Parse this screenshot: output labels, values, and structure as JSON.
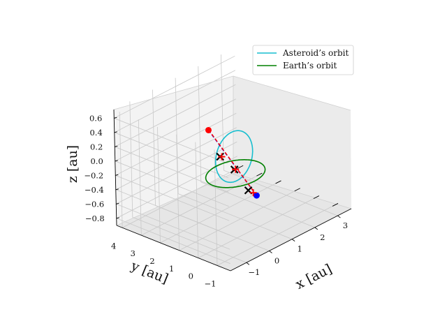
{
  "chart_data": {
    "type": "line",
    "projection": "3d",
    "xlabel": "x [au]",
    "ylabel": "y [au]",
    "zlabel": "z [au]",
    "xlim": [
      -1.7,
      3.6
    ],
    "ylim": [
      -1.7,
      4.3
    ],
    "zlim": [
      -0.9,
      0.72
    ],
    "xticks": [
      "−1",
      "0",
      "1",
      "2",
      "3"
    ],
    "xtick_values": [
      -1,
      0,
      1,
      2,
      3
    ],
    "yticks": [
      "−1",
      "0",
      "1",
      "2",
      "3",
      "4"
    ],
    "ytick_values": [
      -1,
      0,
      1,
      2,
      3,
      4
    ],
    "zticks": [
      "−0.8",
      "−0.6",
      "−0.4",
      "−0.2",
      "0.0",
      "0.2",
      "0.4",
      "0.6"
    ],
    "ztick_values": [
      -0.8,
      -0.6,
      -0.4,
      -0.2,
      0.0,
      0.2,
      0.4,
      0.6
    ],
    "grid": true,
    "legend_position": "top-right",
    "series": [
      {
        "name": "Asteroid’s orbit",
        "kind": "ellipse",
        "color": "#17becf",
        "center": [
          0.97,
          1.24,
          -0.05
        ],
        "u": [
          1.49,
          2.03,
          -0.82
        ],
        "v": [
          -0.4,
          0.48,
          0.0
        ]
      },
      {
        "name": "Earth’s orbit",
        "kind": "ellipse",
        "color": "#008000",
        "center": [
          0,
          0,
          0
        ],
        "u": [
          1,
          0,
          0
        ],
        "v": [
          0,
          1,
          0
        ]
      }
    ],
    "segments": [
      {
        "color": "#0000ff",
        "style": "dashed",
        "from": [
          0.18,
          1.6,
          0.41
        ],
        "to": [
          0.65,
          -0.3,
          -0.38
        ]
      },
      {
        "color": "#ff0000",
        "style": "dashed",
        "from": [
          0.2,
          1.62,
          0.41
        ],
        "to": [
          0.6,
          -0.35,
          -0.36
        ]
      }
    ],
    "points": [
      {
        "marker": "circle",
        "color": "#ff0000",
        "xyz": [
          0.18,
          1.6,
          0.41
        ]
      },
      {
        "marker": "circle",
        "color": "#0000ff",
        "xyz": [
          0.65,
          -0.3,
          -0.38
        ]
      },
      {
        "marker": "x",
        "color": "#000000",
        "xyz": [
          0.25,
          1.1,
          0.08
        ]
      },
      {
        "marker": "x",
        "color": "#000000",
        "xyz": [
          0.45,
          0.6,
          -0.08
        ]
      },
      {
        "marker": "x",
        "color": "#000000",
        "xyz": [
          0.5,
          -0.05,
          -0.31
        ]
      },
      {
        "marker": "plus",
        "color": "#ff0000",
        "xyz": [
          0.28,
          1.05,
          0.08
        ]
      },
      {
        "marker": "plus",
        "color": "#ff0000",
        "xyz": [
          0.48,
          0.58,
          -0.08
        ]
      },
      {
        "marker": "plus",
        "color": "#ff0000",
        "xyz": [
          0.55,
          -0.25,
          -0.33
        ]
      }
    ]
  }
}
